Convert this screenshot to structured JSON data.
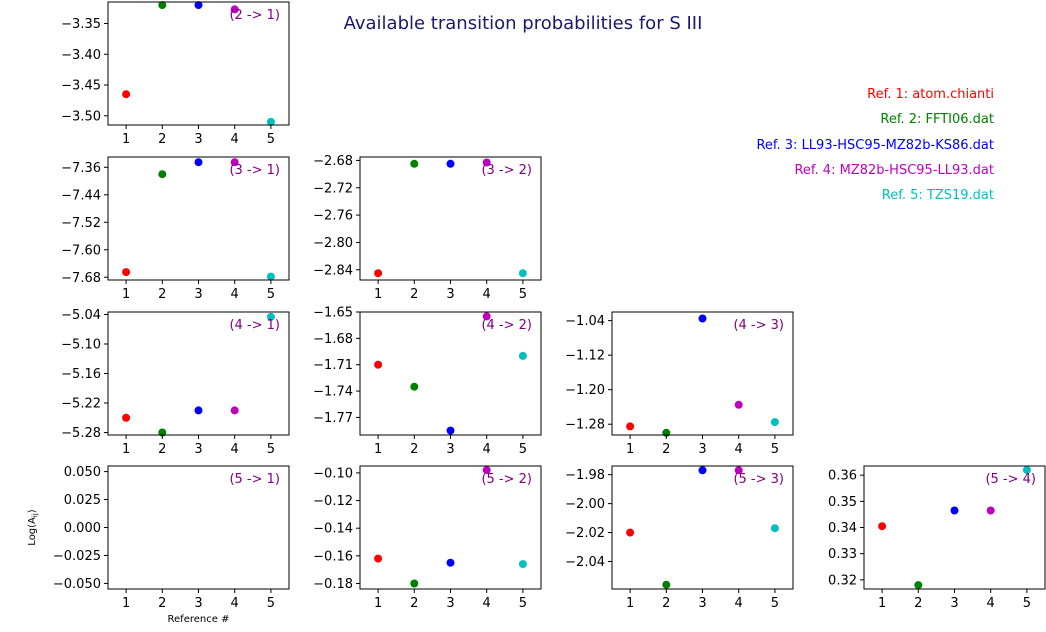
{
  "title": "Available transition probabilities for S III",
  "xlabel": "Reference #",
  "ylabel": "Log(A",
  "ylabel_sub": "ij",
  "ylabel_close": ")",
  "references": [
    {
      "label": "Ref. 1: atom.chianti",
      "color": "#ff0000"
    },
    {
      "label": "Ref. 2: FFTI06.dat",
      "color": "#008000"
    },
    {
      "label": "Ref. 3: LL93-HSC95-MZ82b-KS86.dat",
      "color": "#0000ff"
    },
    {
      "label": "Ref. 4: MZ82b-HSC95-LL93.dat",
      "color": "#bf00bf"
    },
    {
      "label": "Ref. 5: TZS19.dat",
      "color": "#00bfbf"
    }
  ],
  "chart_data": [
    {
      "type": "scatter",
      "label": "(2 -> 1)",
      "row": 0,
      "col": 0,
      "x": [
        1,
        2,
        3,
        4,
        5
      ],
      "y": [
        -3.465,
        -3.32,
        -3.32,
        -3.327,
        -3.51
      ],
      "ylim": [
        -3.515,
        -3.315
      ],
      "yticks": [
        -3.35,
        -3.4,
        -3.45,
        -3.5
      ],
      "ytick_labels": [
        "−3.35",
        "−3.40",
        "−3.45",
        "−3.50"
      ]
    },
    {
      "type": "scatter",
      "label": "(3 -> 1)",
      "row": 1,
      "col": 0,
      "x": [
        1,
        2,
        3,
        4,
        5
      ],
      "y": [
        -7.665,
        -7.38,
        -7.345,
        -7.345,
        -7.678
      ],
      "ylim": [
        -7.688,
        -7.33
      ],
      "yticks": [
        -7.36,
        -7.44,
        -7.52,
        -7.6,
        -7.68
      ],
      "ytick_labels": [
        "−7.36",
        "−7.44",
        "−7.52",
        "−7.60",
        "−7.68"
      ]
    },
    {
      "type": "scatter",
      "label": "(3 -> 2)",
      "row": 1,
      "col": 1,
      "x": [
        1,
        2,
        3,
        4,
        5
      ],
      "y": [
        -2.845,
        -2.685,
        -2.685,
        -2.683,
        -2.845
      ],
      "ylim": [
        -2.855,
        -2.675
      ],
      "yticks": [
        -2.68,
        -2.72,
        -2.76,
        -2.8,
        -2.84
      ],
      "ytick_labels": [
        "−2.68",
        "−2.72",
        "−2.76",
        "−2.80",
        "−2.84"
      ]
    },
    {
      "type": "scatter",
      "label": "(4 -> 1)",
      "row": 2,
      "col": 0,
      "x": [
        1,
        2,
        3,
        4,
        5
      ],
      "y": [
        -5.25,
        -5.28,
        -5.235,
        -5.235,
        -5.045
      ],
      "ylim": [
        -5.285,
        -5.035
      ],
      "yticks": [
        -5.04,
        -5.1,
        -5.16,
        -5.22,
        -5.28
      ],
      "ytick_labels": [
        "−5.04",
        "−5.10",
        "−5.16",
        "−5.22",
        "−5.28"
      ]
    },
    {
      "type": "scatter",
      "label": "(4 -> 2)",
      "row": 2,
      "col": 1,
      "x": [
        1,
        2,
        3,
        4,
        5
      ],
      "y": [
        -1.71,
        -1.735,
        -1.785,
        -1.655,
        -1.7
      ],
      "ylim": [
        -1.79,
        -1.65
      ],
      "yticks": [
        -1.65,
        -1.68,
        -1.71,
        -1.74,
        -1.77
      ],
      "ytick_labels": [
        "−1.65",
        "−1.68",
        "−1.71",
        "−1.74",
        "−1.77"
      ]
    },
    {
      "type": "scatter",
      "label": "(4 -> 3)",
      "row": 2,
      "col": 2,
      "x": [
        1,
        2,
        3,
        4,
        5
      ],
      "y": [
        -1.285,
        -1.3,
        -1.035,
        -1.235,
        -1.275
      ],
      "ylim": [
        -1.305,
        -1.02
      ],
      "yticks": [
        -1.04,
        -1.12,
        -1.2,
        -1.28
      ],
      "ytick_labels": [
        "−1.04",
        "−1.12",
        "−1.20",
        "−1.28"
      ]
    },
    {
      "type": "scatter",
      "label": "(5 -> 1)",
      "row": 3,
      "col": 0,
      "x": [],
      "y": [],
      "ylim": [
        -0.055,
        0.055
      ],
      "yticks": [
        0.05,
        0.025,
        0.0,
        -0.025,
        -0.05
      ],
      "ytick_labels": [
        "0.050",
        "0.025",
        "0.000",
        "−0.025",
        "−0.050"
      ]
    },
    {
      "type": "scatter",
      "label": "(5 -> 2)",
      "row": 3,
      "col": 1,
      "x": [
        1,
        2,
        3,
        4,
        5
      ],
      "y": [
        -0.162,
        -0.18,
        -0.165,
        -0.098,
        -0.166
      ],
      "ylim": [
        -0.184,
        -0.095
      ],
      "yticks": [
        -0.1,
        -0.12,
        -0.14,
        -0.16,
        -0.18
      ],
      "ytick_labels": [
        "−0.10",
        "−0.12",
        "−0.14",
        "−0.16",
        "−0.18"
      ]
    },
    {
      "type": "scatter",
      "label": "(5 -> 3)",
      "row": 3,
      "col": 2,
      "x": [
        1,
        2,
        3,
        4,
        5
      ],
      "y": [
        -2.02,
        -2.056,
        -1.977,
        -1.977,
        -2.017
      ],
      "ylim": [
        -2.059,
        -1.974
      ],
      "yticks": [
        -1.98,
        -2.0,
        -2.02,
        -2.04
      ],
      "ytick_labels": [
        "−1.98",
        "−2.00",
        "−2.02",
        "−2.04"
      ]
    },
    {
      "type": "scatter",
      "label": "(5 -> 4)",
      "row": 3,
      "col": 3,
      "x": [
        1,
        2,
        3,
        4,
        5
      ],
      "y": [
        0.3405,
        0.318,
        0.3465,
        0.3465,
        0.362
      ],
      "ylim": [
        0.3165,
        0.3635
      ],
      "yticks": [
        0.36,
        0.35,
        0.34,
        0.33,
        0.32
      ],
      "ytick_labels": [
        "0.36",
        "0.35",
        "0.34",
        "0.33",
        "0.32"
      ]
    }
  ],
  "xticks": [
    1,
    2,
    3,
    4,
    5
  ],
  "xlim": [
    0.5,
    5.5
  ],
  "colors": {
    "axis": "#000000",
    "label": "#800080",
    "title": "#191970"
  }
}
